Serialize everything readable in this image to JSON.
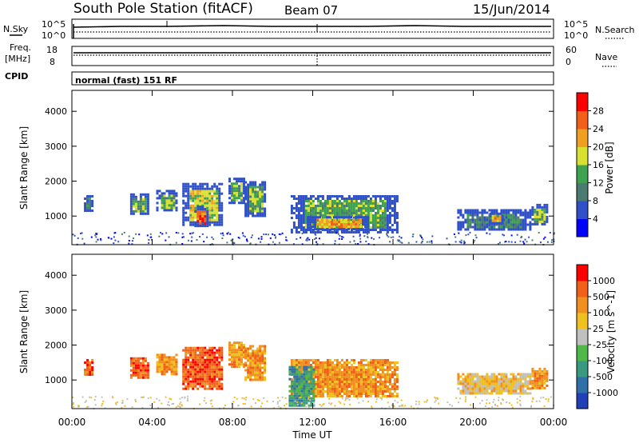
{
  "header": {
    "title": "South Pole Station (fitACF)",
    "beam": "Beam 07",
    "date": "15/Jun/2014"
  },
  "nsky_panel": {
    "left_label": "N.Sky",
    "left_ticks": [
      "10^5",
      "10^0"
    ],
    "right_ticks": [
      "10^5",
      "10^0"
    ],
    "right_label": "N.Search"
  },
  "freq_panel": {
    "left_label_1": "Freq.",
    "left_label_2": "[MHz]",
    "left_ticks": [
      "18",
      "8"
    ],
    "right_ticks": [
      "60",
      "0"
    ],
    "right_label": "Nave"
  },
  "cpid_panel": {
    "label": "CPID",
    "mode": "normal (fast) 151 RF"
  },
  "chart_data": [
    {
      "type": "heatmap",
      "name": "Power",
      "ylabel": "Slant Range [km]",
      "ylim": [
        180,
        4600
      ],
      "yticks": [
        "4000",
        "3000",
        "2000",
        "1000"
      ],
      "xlim": [
        0,
        24
      ],
      "colorbar": {
        "label": "Power [dB]",
        "tick_labels": [
          "28",
          "24",
          "20",
          "16",
          "12",
          "8",
          "4"
        ],
        "colors": [
          "#0000ff",
          "#3050c8",
          "#4a7a70",
          "#3fa250",
          "#d8e030",
          "#f0a020",
          "#f06018",
          "#ff0000"
        ]
      },
      "echo_regions": [
        {
          "start": 0.6,
          "end": 1.0,
          "rmin": 1150,
          "rmax": 1600,
          "level": 2
        },
        {
          "start": 2.9,
          "end": 3.8,
          "rmin": 1050,
          "rmax": 1650,
          "level": 3
        },
        {
          "start": 4.2,
          "end": 5.2,
          "rmin": 1150,
          "rmax": 1750,
          "level": 3
        },
        {
          "start": 5.5,
          "end": 7.5,
          "rmin": 750,
          "rmax": 1950,
          "level": 4
        },
        {
          "start": 6.1,
          "end": 6.7,
          "rmin": 700,
          "rmax": 1300,
          "level": 6
        },
        {
          "start": 7.8,
          "end": 8.6,
          "rmin": 1350,
          "rmax": 2100,
          "level": 3
        },
        {
          "start": 8.6,
          "end": 9.6,
          "rmin": 1000,
          "rmax": 2000,
          "level": 3
        },
        {
          "start": 10.9,
          "end": 16.2,
          "rmin": 550,
          "rmax": 1600,
          "level": 3
        },
        {
          "start": 11.7,
          "end": 14.8,
          "rmin": 650,
          "rmax": 1000,
          "level": 5
        },
        {
          "start": 19.2,
          "end": 22.8,
          "rmin": 600,
          "rmax": 1200,
          "level": 2
        },
        {
          "start": 22.9,
          "end": 23.7,
          "rmin": 750,
          "rmax": 1350,
          "level": 3
        },
        {
          "start": 20.8,
          "end": 21.4,
          "rmin": 800,
          "rmax": 1100,
          "level": 5
        }
      ]
    },
    {
      "type": "heatmap",
      "name": "Velocity",
      "ylabel": "Slant Range [km]",
      "ylim": [
        180,
        4600
      ],
      "yticks": [
        "4000",
        "3000",
        "2000",
        "1000"
      ],
      "xlim": [
        0,
        24
      ],
      "xlabel": "Time UT",
      "xticks": [
        "00:00",
        "04:00",
        "08:00",
        "12:00",
        "16:00",
        "20:00",
        "00:00"
      ],
      "colorbar": {
        "label": "Velocity [m s^-1]",
        "tick_labels": [
          "1000",
          "500",
          "100",
          "25",
          "-25",
          "-100",
          "-500",
          "-1000"
        ],
        "colors": [
          "#2040b8",
          "#3070a8",
          "#3a9a80",
          "#50b848",
          "#c0c0c0",
          "#f0c020",
          "#f09020",
          "#f06018",
          "#ff0000"
        ]
      },
      "echo_regions": [
        {
          "start": 0.6,
          "end": 1.0,
          "rmin": 1150,
          "rmax": 1600,
          "level": 7
        },
        {
          "start": 2.9,
          "end": 3.8,
          "rmin": 1050,
          "rmax": 1650,
          "level": 7
        },
        {
          "start": 4.2,
          "end": 5.2,
          "rmin": 1150,
          "rmax": 1750,
          "level": 6
        },
        {
          "start": 5.5,
          "end": 7.5,
          "rmin": 750,
          "rmax": 1950,
          "level": 7
        },
        {
          "start": 7.8,
          "end": 8.6,
          "rmin": 1350,
          "rmax": 2100,
          "level": 6
        },
        {
          "start": 8.6,
          "end": 9.6,
          "rmin": 1000,
          "rmax": 2000,
          "level": 6
        },
        {
          "start": 10.9,
          "end": 16.2,
          "rmin": 550,
          "rmax": 1600,
          "level": 6
        },
        {
          "start": 10.8,
          "end": 12.0,
          "rmin": 300,
          "rmax": 1400,
          "level": 2
        },
        {
          "start": 19.2,
          "end": 22.8,
          "rmin": 600,
          "rmax": 1200,
          "level": 5
        },
        {
          "start": 22.9,
          "end": 23.7,
          "rmin": 750,
          "rmax": 1350,
          "level": 6
        }
      ]
    }
  ]
}
